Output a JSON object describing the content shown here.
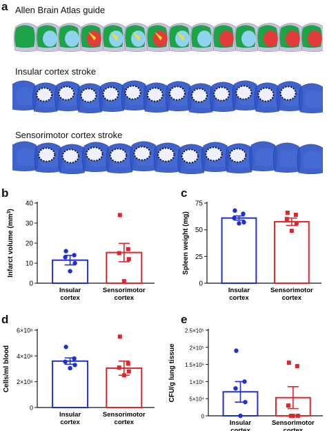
{
  "panel_a": {
    "letter": "a",
    "rows": [
      {
        "label": "Allen Brain Atlas guide"
      },
      {
        "label": "Insular cortex stroke"
      },
      {
        "label": "Sensorimotor cortex stroke"
      }
    ]
  },
  "colors": {
    "insular": "#1f2fd6",
    "sensorimotor": "#e0242b",
    "atlas_green": "#1ea34a",
    "atlas_blue": "#8fd3f0",
    "atlas_red": "#e33b3b",
    "atlas_yellow": "#f2e21b",
    "stain_blue": "#2f56c6"
  },
  "chart_data": [
    {
      "panel": "b",
      "type": "bar",
      "categories": [
        "Insular\ncortex",
        "Sensorimotor\ncortex"
      ],
      "category_lines": [
        [
          "Insular",
          "cortex"
        ],
        [
          "Sensorimotor",
          "cortex"
        ]
      ],
      "values": [
        11.5,
        15.3
      ],
      "sem": [
        2.4,
        4.6
      ],
      "points": [
        [
          16,
          14,
          13,
          10,
          6
        ],
        [
          34,
          17,
          15,
          12,
          1
        ]
      ],
      "ylabel_main": "Infarct volume  (mm",
      "ylabel_sup": "3",
      "ylabel_end": ")",
      "ylim": [
        0,
        40
      ],
      "yticks": [
        0,
        10,
        20,
        30,
        40
      ],
      "ytick_labels": [
        "0",
        "10",
        "20",
        "30",
        "40"
      ]
    },
    {
      "panel": "c",
      "type": "bar",
      "categories": [
        "Insular\ncortex",
        "Sensorimotor\ncortex"
      ],
      "category_lines": [
        [
          "Insular",
          "cortex"
        ],
        [
          "Sensorimotor",
          "cortex"
        ]
      ],
      "values": [
        61,
        57.5
      ],
      "sem": [
        2.0,
        3.5
      ],
      "points": [
        [
          68,
          65,
          61,
          57,
          56
        ],
        [
          66,
          64,
          60,
          56,
          49
        ]
      ],
      "ylabel_main": "Spleen weight  (mg)",
      "ylabel_sup": "",
      "ylabel_end": "",
      "ylim": [
        0,
        75
      ],
      "yticks": [
        0,
        25,
        50,
        75
      ],
      "ytick_labels": [
        "0",
        "25",
        "50",
        "75"
      ]
    },
    {
      "panel": "d",
      "type": "bar",
      "categories": [
        "Insular\ncortex",
        "Sensorimotor\ncortex"
      ],
      "category_lines": [
        [
          "Insular",
          "cortex"
        ],
        [
          "Sensorimotor",
          "cortex"
        ]
      ],
      "values": [
        3600000,
        3050000
      ],
      "sem": [
        250000,
        550000
      ],
      "points": [
        [
          4700000,
          3800000,
          3550000,
          3300000,
          3050000
        ],
        [
          5500000,
          3400000,
          3100000,
          2800000,
          2500000
        ]
      ],
      "ylabel_main": "Cells/ml blood",
      "ylabel_sup": "",
      "ylabel_end": "",
      "ylim": [
        0,
        6000000
      ],
      "yticks": [
        0,
        2000000,
        4000000,
        6000000
      ],
      "ytick_labels": [
        "0",
        "2×10⁶",
        "4×10⁶",
        "6×10⁶"
      ]
    },
    {
      "panel": "e",
      "type": "bar",
      "categories": [
        "Insular\ncortex",
        "Sensorimotor\ncortex"
      ],
      "category_lines": [
        [
          "Insular",
          "cortex"
        ],
        [
          "Sensorimotor",
          "cortex"
        ]
      ],
      "values": [
        70000,
        53000
      ],
      "sem": [
        30000,
        32000
      ],
      "points": [
        [
          190000,
          100000,
          80000,
          40000,
          0
        ],
        [
          155000,
          145000,
          30000,
          0,
          0,
          0
        ]
      ],
      "ylabel_main": "CFU/g lung tissue",
      "ylabel_sup": "",
      "ylabel_end": "",
      "ylim": [
        0,
        250000
      ],
      "yticks": [
        0,
        50000,
        100000,
        150000,
        200000,
        250000
      ],
      "ytick_labels": [
        "0",
        "5×10⁴",
        "1×10⁵",
        "1.5×10⁵",
        "2×10⁵",
        "2.5×10⁵"
      ]
    }
  ]
}
